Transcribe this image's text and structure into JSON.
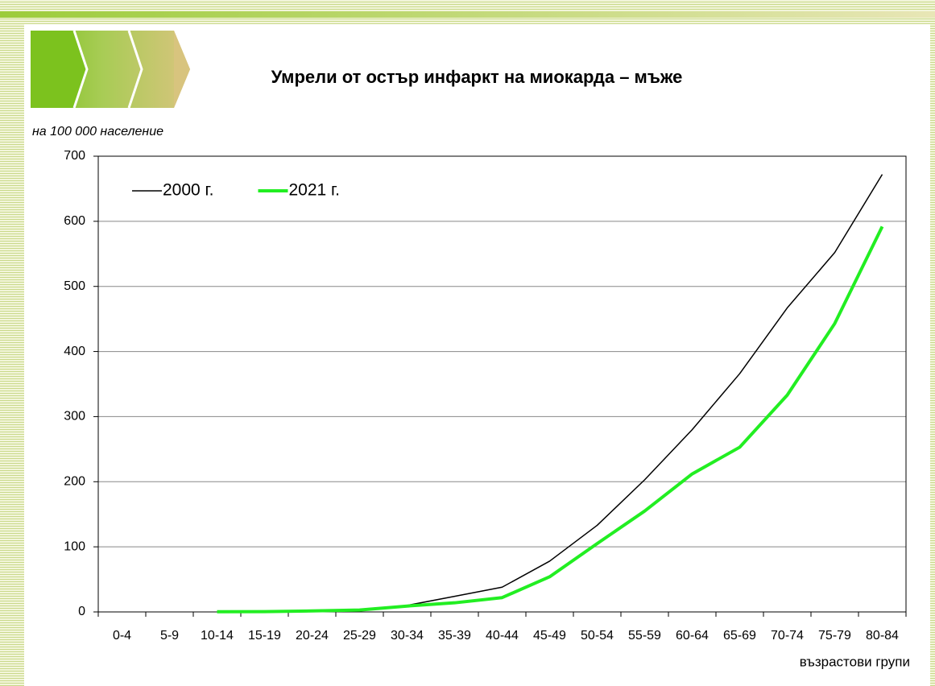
{
  "chart_data": {
    "type": "line",
    "title": "Умрели от остър инфаркт на миокарда – мъже",
    "ylabel": "на 100 000 население",
    "xlabel": "възрастови групи",
    "categories": [
      "0-4",
      "5-9",
      "10-14",
      "15-19",
      "20-24",
      "25-29",
      "30-34",
      "35-39",
      "40-44",
      "45-49",
      "50-54",
      "55-59",
      "60-64",
      "65-69",
      "70-74",
      "75-79",
      "80-84"
    ],
    "series": [
      {
        "name": "2000 г.",
        "color": "#000000",
        "width": 1.5,
        "values": [
          null,
          null,
          0.5,
          1,
          2,
          4,
          10,
          24,
          38,
          78,
          133,
          203,
          280,
          366,
          467,
          552,
          672
        ]
      },
      {
        "name": "2021 г.",
        "color": "#22ee22",
        "width": 4,
        "values": [
          null,
          null,
          0.3,
          0.5,
          1.5,
          3,
          9,
          14,
          22,
          54,
          105,
          155,
          212,
          253,
          333,
          443,
          592
        ]
      }
    ],
    "ylim": [
      0,
      700
    ],
    "yticks": [
      0,
      100,
      200,
      300,
      400,
      500,
      600,
      700
    ],
    "grid": true,
    "legend": "upper-left"
  }
}
